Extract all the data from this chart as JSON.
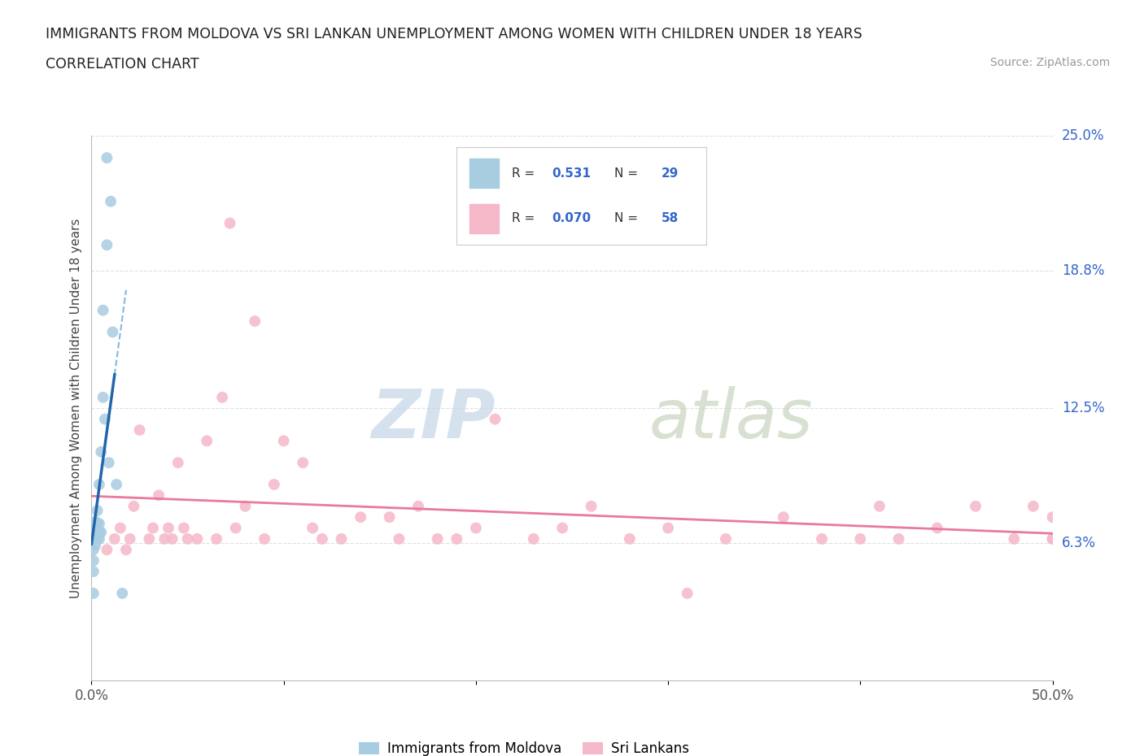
{
  "title_line1": "IMMIGRANTS FROM MOLDOVA VS SRI LANKAN UNEMPLOYMENT AMONG WOMEN WITH CHILDREN UNDER 18 YEARS",
  "title_line2": "CORRELATION CHART",
  "source": "Source: ZipAtlas.com",
  "ylabel": "Unemployment Among Women with Children Under 18 years",
  "xlim": [
    0.0,
    0.5
  ],
  "ylim": [
    0.0,
    0.25
  ],
  "yticks_right": [
    0.063,
    0.125,
    0.188,
    0.25
  ],
  "yticks_right_labels": [
    "6.3%",
    "12.5%",
    "18.8%",
    "25.0%"
  ],
  "moldova_color": "#a8cce0",
  "srilanka_color": "#f5b8c8",
  "moldova_line_color": "#2166ac",
  "moldova_dash_color": "#6aaed6",
  "srilanka_line_color": "#e87aa0",
  "moldova_R": 0.531,
  "moldova_N": 29,
  "srilanka_R": 0.07,
  "srilanka_N": 58,
  "background_color": "#ffffff",
  "grid_color": "#e0e0e0",
  "moldova_scatter_x": [
    0.001,
    0.001,
    0.001,
    0.001,
    0.002,
    0.002,
    0.002,
    0.002,
    0.002,
    0.003,
    0.003,
    0.003,
    0.003,
    0.004,
    0.004,
    0.004,
    0.004,
    0.005,
    0.005,
    0.006,
    0.006,
    0.007,
    0.008,
    0.008,
    0.009,
    0.01,
    0.011,
    0.013,
    0.016
  ],
  "moldova_scatter_y": [
    0.04,
    0.05,
    0.055,
    0.06,
    0.062,
    0.065,
    0.068,
    0.07,
    0.073,
    0.065,
    0.068,
    0.072,
    0.078,
    0.065,
    0.068,
    0.072,
    0.09,
    0.068,
    0.105,
    0.13,
    0.17,
    0.12,
    0.2,
    0.24,
    0.1,
    0.22,
    0.16,
    0.09,
    0.04
  ],
  "srilanka_scatter_x": [
    0.008,
    0.012,
    0.015,
    0.018,
    0.02,
    0.022,
    0.025,
    0.03,
    0.032,
    0.035,
    0.038,
    0.04,
    0.042,
    0.045,
    0.048,
    0.05,
    0.055,
    0.06,
    0.065,
    0.068,
    0.072,
    0.075,
    0.08,
    0.085,
    0.09,
    0.095,
    0.1,
    0.11,
    0.115,
    0.12,
    0.13,
    0.14,
    0.155,
    0.16,
    0.17,
    0.18,
    0.19,
    0.2,
    0.21,
    0.23,
    0.245,
    0.26,
    0.28,
    0.3,
    0.31,
    0.33,
    0.36,
    0.38,
    0.4,
    0.41,
    0.42,
    0.44,
    0.46,
    0.48,
    0.49,
    0.5,
    0.5,
    0.5
  ],
  "srilanka_scatter_y": [
    0.06,
    0.065,
    0.07,
    0.06,
    0.065,
    0.08,
    0.115,
    0.065,
    0.07,
    0.085,
    0.065,
    0.07,
    0.065,
    0.1,
    0.07,
    0.065,
    0.065,
    0.11,
    0.065,
    0.13,
    0.21,
    0.07,
    0.08,
    0.165,
    0.065,
    0.09,
    0.11,
    0.1,
    0.07,
    0.065,
    0.065,
    0.075,
    0.075,
    0.065,
    0.08,
    0.065,
    0.065,
    0.07,
    0.12,
    0.065,
    0.07,
    0.08,
    0.065,
    0.07,
    0.04,
    0.065,
    0.075,
    0.065,
    0.065,
    0.08,
    0.065,
    0.07,
    0.08,
    0.065,
    0.08,
    0.065,
    0.075,
    0.065
  ]
}
